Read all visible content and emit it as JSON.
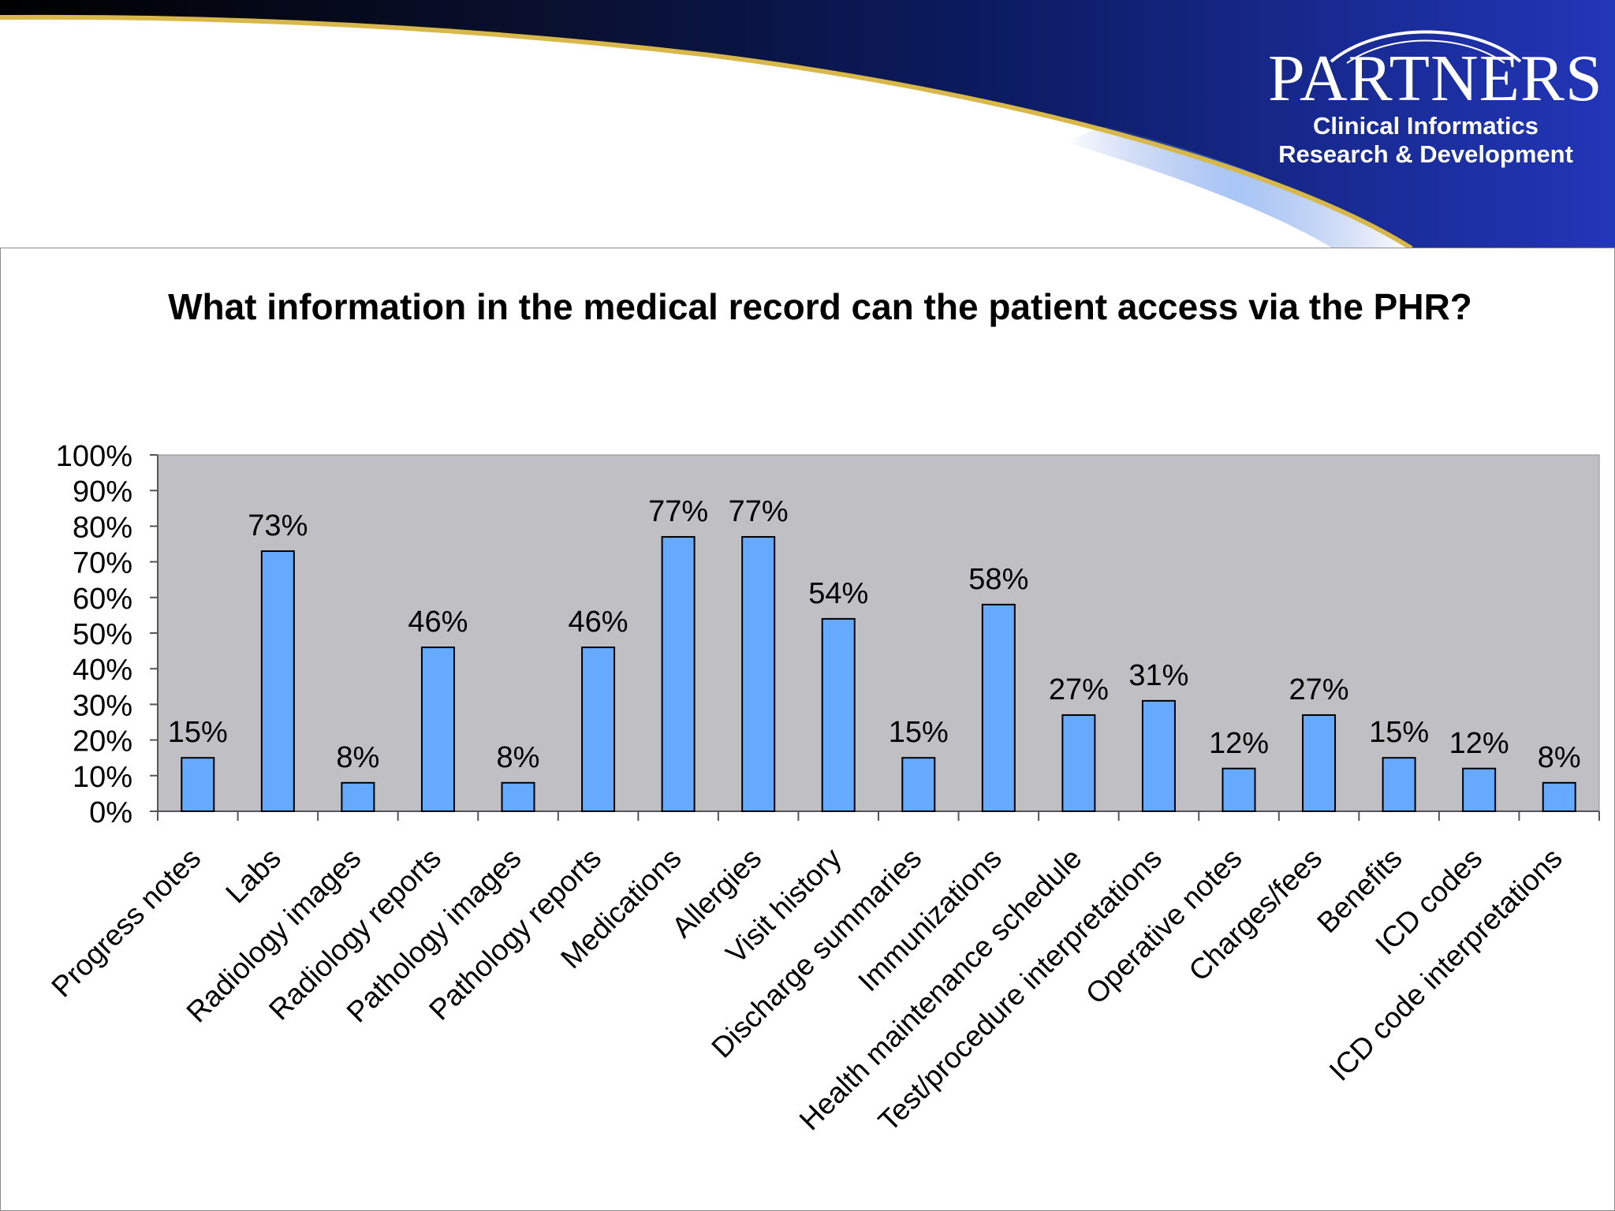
{
  "logo": {
    "brand": "PARTNERS",
    "line1": "Clinical Informatics",
    "line2": "Research & Development"
  },
  "colors": {
    "bar": "#66aaff",
    "plot_bg": "#c0bfc4",
    "banner_dark": "#0b1a5e",
    "swoosh": "#d8b84a"
  },
  "chart_data": {
    "type": "bar",
    "title": "What information in the medical record can the patient access via the PHR?",
    "xlabel": "",
    "ylabel": "",
    "ylim": [
      0,
      100
    ],
    "yticks": [
      "0%",
      "10%",
      "20%",
      "30%",
      "40%",
      "50%",
      "60%",
      "70%",
      "80%",
      "90%",
      "100%"
    ],
    "categories": [
      "Progress notes",
      "Labs",
      "Radiology images",
      "Radiology reports",
      "Pathology images",
      "Pathology reports",
      "Medications",
      "Allergies",
      "Visit history",
      "Discharge summaries",
      "Immunizations",
      "Health maintenance schedule",
      "Test/procedure interpretations",
      "Operative notes",
      "Charges/fees",
      "Benefits",
      "ICD codes",
      "ICD code interpretations"
    ],
    "values": [
      15,
      73,
      8,
      46,
      8,
      46,
      77,
      77,
      54,
      15,
      58,
      27,
      31,
      12,
      27,
      15,
      12,
      8
    ],
    "data_labels": [
      "15%",
      "73%",
      "8%",
      "46%",
      "8%",
      "46%",
      "77%",
      "77%",
      "54%",
      "15%",
      "58%",
      "27%",
      "31%",
      "12%",
      "27%",
      "15%",
      "12%",
      "8%"
    ],
    "legend": "none",
    "grid": false
  }
}
